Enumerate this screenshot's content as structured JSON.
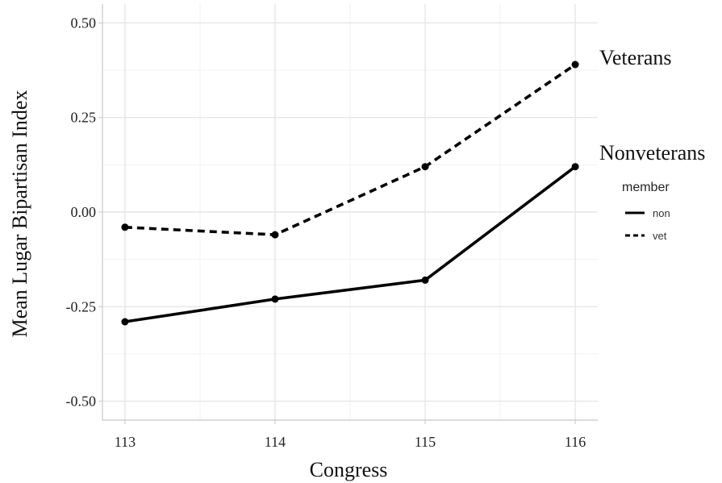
{
  "chart_data": {
    "type": "line",
    "title": "",
    "xlabel": "Congress",
    "ylabel": "Mean Lugar Bipartisan Index",
    "x": [
      113,
      114,
      115,
      116
    ],
    "xlim": [
      112.85,
      116.15
    ],
    "ylim": [
      -0.55,
      0.55
    ],
    "x_ticks": [
      "113",
      "114",
      "115",
      "116"
    ],
    "y_ticks": [
      "0.50",
      "0.25",
      "0.00",
      "-0.25",
      "-0.50"
    ],
    "grid": true,
    "series": [
      {
        "name": "vet",
        "line_style": "dashed",
        "color": "#000000",
        "values": [
          -0.04,
          -0.06,
          0.12,
          0.39
        ]
      },
      {
        "name": "non",
        "line_style": "solid",
        "color": "#000000",
        "values": [
          -0.29,
          -0.23,
          -0.18,
          0.12
        ]
      }
    ],
    "annotations": [
      {
        "text": "Veterans",
        "series": "vet"
      },
      {
        "text": "Nonveterans",
        "series": "non"
      }
    ],
    "legend": {
      "title": "member",
      "placement": "right",
      "entries": [
        {
          "label": "non",
          "line_style": "solid"
        },
        {
          "label": "vet",
          "line_style": "dashed"
        }
      ]
    }
  }
}
